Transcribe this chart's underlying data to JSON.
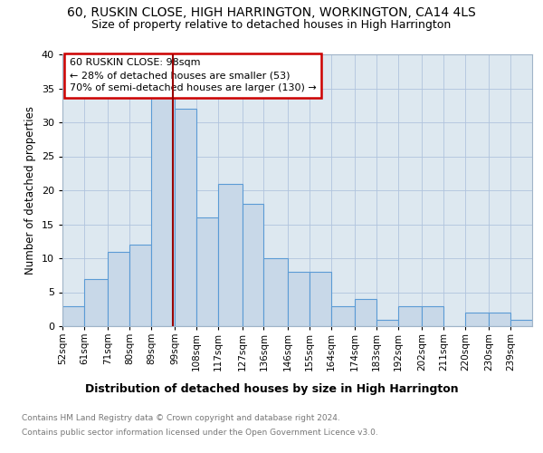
{
  "title1": "60, RUSKIN CLOSE, HIGH HARRINGTON, WORKINGTON, CA14 4LS",
  "title2": "Size of property relative to detached houses in High Harrington",
  "xlabel": "Distribution of detached houses by size in High Harrington",
  "ylabel": "Number of detached properties",
  "footnote1": "Contains HM Land Registry data © Crown copyright and database right 2024.",
  "footnote2": "Contains public sector information licensed under the Open Government Licence v3.0.",
  "bin_labels": [
    "52sqm",
    "61sqm",
    "71sqm",
    "80sqm",
    "89sqm",
    "99sqm",
    "108sqm",
    "117sqm",
    "127sqm",
    "136sqm",
    "146sqm",
    "155sqm",
    "164sqm",
    "174sqm",
    "183sqm",
    "192sqm",
    "202sqm",
    "211sqm",
    "220sqm",
    "230sqm",
    "239sqm"
  ],
  "bin_edges": [
    52,
    61,
    71,
    80,
    89,
    99,
    108,
    117,
    127,
    136,
    146,
    155,
    164,
    174,
    183,
    192,
    202,
    211,
    220,
    230,
    239,
    248
  ],
  "counts": [
    3,
    7,
    11,
    12,
    34,
    32,
    16,
    21,
    18,
    10,
    8,
    8,
    3,
    4,
    1,
    3,
    3,
    0,
    2,
    2,
    1
  ],
  "bar_color": "#c8d8e8",
  "bar_edge_color": "#5b9bd5",
  "property_size": 98,
  "property_label": "60 RUSKIN CLOSE: 98sqm",
  "annotation_line1": "← 28% of detached houses are smaller (53)",
  "annotation_line2": "70% of semi-detached houses are larger (130) →",
  "vline_color": "#990000",
  "annotation_box_edge": "#cc0000",
  "ylim": [
    0,
    40
  ],
  "yticks": [
    0,
    5,
    10,
    15,
    20,
    25,
    30,
    35,
    40
  ],
  "background_color": "#ffffff",
  "grid_color": "#b0c4de",
  "axes_bg_color": "#dde8f0"
}
